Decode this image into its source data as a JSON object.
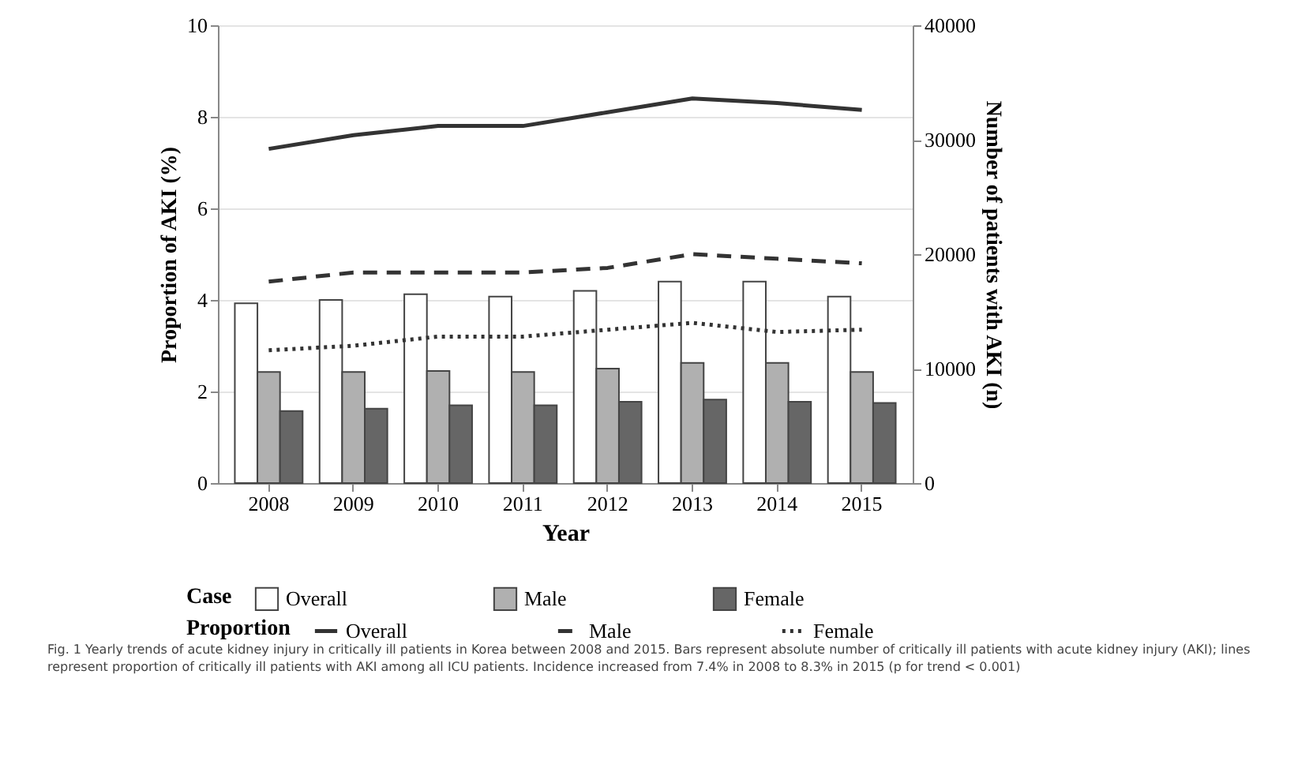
{
  "chart_data": {
    "type": "bar",
    "xlabel": "Year",
    "ylabel": "Proportion of AKI (%)",
    "y2label": "Number of patients with AKI (n)",
    "legend_title": [
      "Case",
      "Proportion"
    ],
    "categories": [
      "2008",
      "2009",
      "2010",
      "2011",
      "2012",
      "2013",
      "2014",
      "2015"
    ],
    "series": [
      {
        "name": "Overall",
        "axis": "y2",
        "color": "#ffffff",
        "values": [
          15700,
          16000,
          16500,
          16300,
          16800,
          17600,
          17600,
          16300
        ]
      },
      {
        "name": "Male",
        "axis": "y2",
        "color": "#b0b0b0",
        "values": [
          9700,
          9700,
          9800,
          9700,
          10000,
          10500,
          10500,
          9700
        ]
      },
      {
        "name": "Female",
        "axis": "y2",
        "color": "#666666",
        "values": [
          6300,
          6500,
          6800,
          6800,
          7100,
          7300,
          7100,
          7000
        ]
      },
      {
        "name": "Overall",
        "type": "line",
        "axis": "y",
        "color": "#333333",
        "line_style": "solid",
        "values": [
          7.3,
          7.6,
          7.8,
          7.8,
          8.1,
          8.4,
          8.3,
          8.15
        ]
      },
      {
        "name": "Male",
        "type": "line",
        "axis": "y",
        "color": "#333333",
        "line_style": "dashed",
        "values": [
          4.4,
          4.6,
          4.6,
          4.6,
          4.7,
          5.0,
          4.9,
          4.8
        ]
      },
      {
        "name": "Female",
        "type": "line",
        "axis": "y",
        "color": "#333333",
        "line_style": "dotted",
        "values": [
          2.9,
          3.0,
          3.2,
          3.2,
          3.35,
          3.5,
          3.3,
          3.35
        ]
      }
    ],
    "ylim": [
      0,
      10
    ],
    "yticks": [
      0,
      2,
      4,
      6,
      8,
      10
    ],
    "y2lim": [
      0,
      40000
    ],
    "y2ticks": [
      0,
      10000,
      20000,
      30000,
      40000
    ],
    "grid": "y",
    "legend": "bottom",
    "annotations": [
      "Fig. 1 Yearly trends of acute kidney injury in critically ill patients in Korea between 2008 and 2015. Bars represent absolute number of critically ill patients with acute kidney injury (AKI); lines represent proportion of critically ill patients with AKI among all ICU patients. Incidence increased from 7.4% in 2008 to 8.3% in 2015 (p for trend < 0.001)"
    ]
  }
}
